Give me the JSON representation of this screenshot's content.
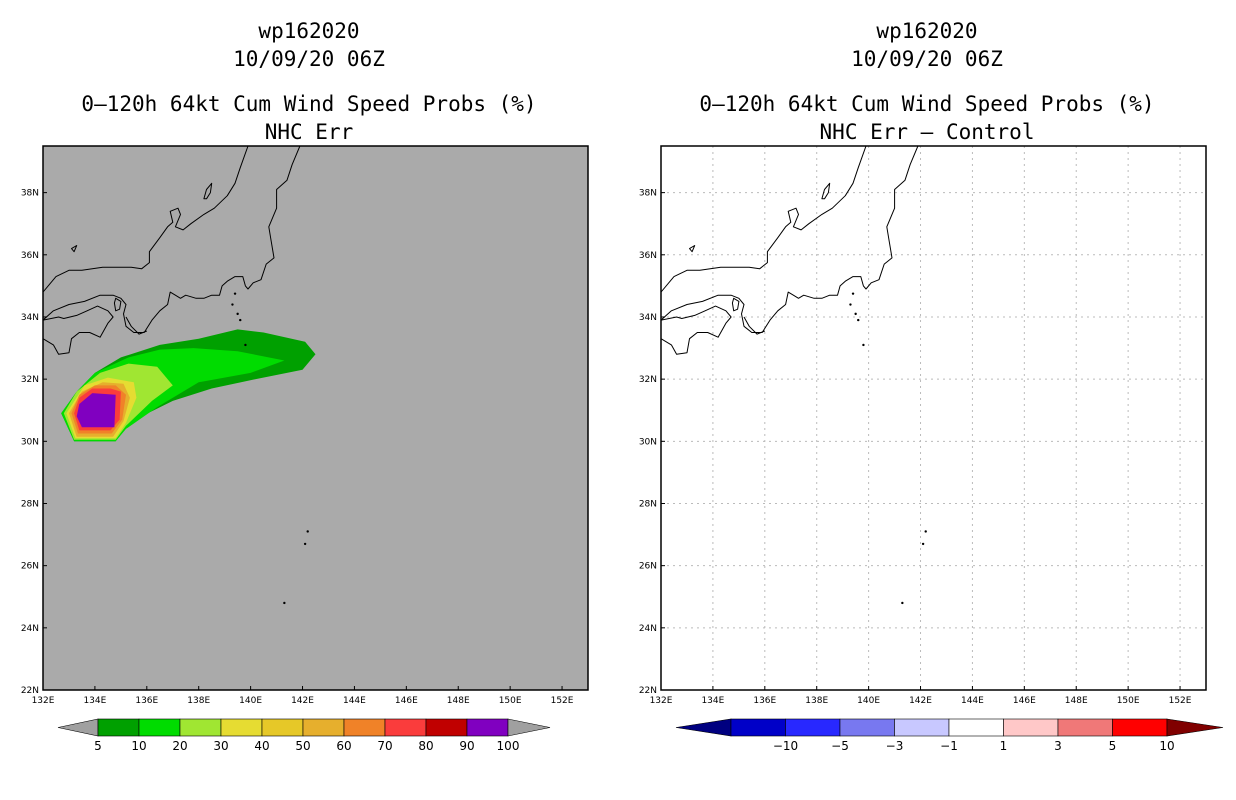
{
  "left": {
    "titles": [
      "wp162020",
      "10/09/20 06Z",
      "0–120h 64kt Cum Wind Speed Probs (%)",
      "NHC Err"
    ],
    "background": "#aaaaaa",
    "colorbar": {
      "labels": [
        "5",
        "10",
        "20",
        "30",
        "40",
        "50",
        "60",
        "70",
        "80",
        "90",
        "100"
      ],
      "colors": [
        "#00a000",
        "#00dc00",
        "#a0e632",
        "#e6dc32",
        "#e6c828",
        "#e6af2d",
        "#f08228",
        "#fa3c3c",
        "#c00000",
        "#8000c0",
        "#a0a0a0"
      ],
      "end_color": "#a0a0a0"
    }
  },
  "right": {
    "titles": [
      "wp162020",
      "10/09/20 06Z",
      "0–120h 64kt Cum Wind Speed Probs (%)",
      "NHC Err – Control"
    ],
    "background": "#ffffff",
    "colorbar": {
      "labels": [
        "−10",
        "−5",
        "−3",
        "−1",
        "1",
        "3",
        "5",
        "10"
      ],
      "colors": [
        "#0000c8",
        "#2828ff",
        "#7878f0",
        "#c8c8ff",
        "#ffffff",
        "#ffc8c8",
        "#f07878",
        "#ff0000"
      ],
      "low_end": "#000080",
      "high_end": "#800000"
    }
  },
  "axes": {
    "lon_labels": [
      "132E",
      "134E",
      "136E",
      "138E",
      "140E",
      "142E",
      "144E",
      "146E",
      "148E",
      "150E",
      "152E"
    ],
    "lat_labels": [
      "22N",
      "24N",
      "26N",
      "28N",
      "30N",
      "32N",
      "34N",
      "36N",
      "38N"
    ]
  },
  "coastline_color": "#000000",
  "grid_color": "#bbbbbb",
  "prob_fill_colors": [
    "#00a000",
    "#00dc00",
    "#a0e632",
    "#e6dc32",
    "#e6af2d",
    "#f08228",
    "#fa3c3c",
    "#8000c0"
  ]
}
